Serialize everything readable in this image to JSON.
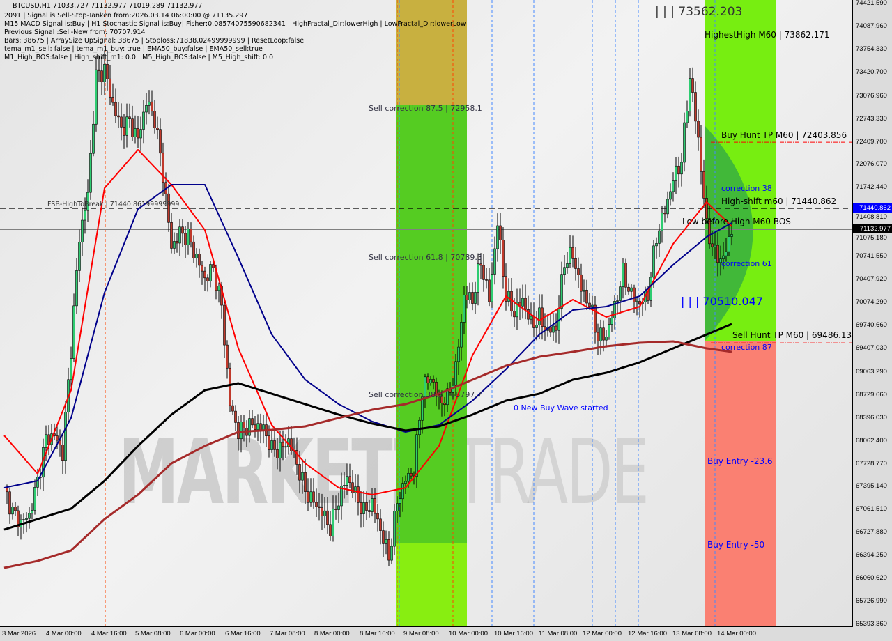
{
  "header": {
    "title_line": "BTCUSD,H1  71033.727 71132.977 71019.289 71132.977",
    "lines": [
      "2091 | Signal is Sell-Stop-Tanken from:2026.03.14 06:00:00 @ 71135.297",
      "M15 MACD Signal is:Buy | H1 Stochastic Signal is:Buy| Fisher:0.08574075590682341 | HighFractal_Dir:lowerHigh | LowFractal_Dir:lowerLow",
      "Previous Signal :Sell-New from: 70707.914",
      "Bars: 38675 | ArraySize UpSignal: 38675 | Stoploss:71838.02499999999 | ResetLoop:false",
      "tema_m1_sell: false | tema_m1_buy: true | EMA50_buy:false | EMA50_sell:true",
      "M1_High_BOS:false | High_shift_m1: 0.0 | M5_High_BOS:false | M5_High_shift: 0.0"
    ]
  },
  "watermark": {
    "left": "MARKETZI",
    "right": "TRADE"
  },
  "annotations": {
    "top_price": "| | | 73562.203",
    "highest_high": "HighestHigh   M60 | 73862.171",
    "buy_hunt": "Buy Hunt TP M60 | 72403.856",
    "correction_38": "correction 38",
    "high_shift": "High-shift m60 | 71440.862",
    "low_before_high": "Low before High   M60-BOS",
    "correction_61": "correction 61",
    "mid_price": "| | | 70510.047",
    "sell_hunt": "Sell Hunt TP M60 | 69486.131",
    "correction_87": "correction 87",
    "buy_entry_23": "Buy Entry -23.6",
    "buy_entry_50": "Buy Entry -50",
    "sell_corr_875": "Sell correction 87.5 | 72958.1",
    "sell_corr_618": "Sell correction 61.8 | 70789.3",
    "sell_corr_382": "Sell correction 38.2 | 68797.7",
    "new_buy_wave": "0 New Buy Wave started",
    "fsb": "FSB-HighToBreak | 71440.86199999999"
  },
  "colors": {
    "bull": "#2ecc71",
    "bear": "#c0392b",
    "fast_ma": "#ff0000",
    "mid_ma": "#00008b",
    "slow_ma": "#000000",
    "long_ma": "#a52a2a",
    "zone_green": "#66dd22",
    "zone_red": "#fa8072",
    "accent_blue": "#0000ff"
  },
  "price_tags": {
    "high_shift": "71440.862",
    "current": "71132.977"
  },
  "chart_data": {
    "type": "candlestick",
    "symbol": "BTCUSD,H1",
    "ylim": [
      65393.36,
      74421.59
    ],
    "y_ticks": [
      "74421.590",
      "74087.960",
      "73754.330",
      "73420.700",
      "73076.960",
      "72743.330",
      "72409.700",
      "72076.070",
      "71742.440",
      "71408.810",
      "71075.180",
      "70741.550",
      "70407.920",
      "70074.290",
      "69740.660",
      "69407.030",
      "69063.290",
      "68729.660",
      "68396.030",
      "68062.400",
      "67728.770",
      "67395.140",
      "67061.510",
      "66727.880",
      "66394.250",
      "66060.620",
      "65726.990",
      "65393.360"
    ],
    "x_ticks": [
      "3 Mar 2026",
      "4 Mar 00:00",
      "4 Mar 16:00",
      "5 Mar 08:00",
      "6 Mar 00:00",
      "6 Mar 16:00",
      "7 Mar 08:00",
      "8 Mar 00:00",
      "8 Mar 16:00",
      "9 Mar 08:00",
      "10 Mar 00:00",
      "10 Mar 16:00",
      "11 Mar 08:00",
      "12 Mar 00:00",
      "12 Mar 16:00",
      "13 Mar 08:00",
      "14 Mar 00:00"
    ],
    "close_start": "3 Mar 2026 03:00",
    "close_step_hours": 3,
    "closes": [
      67380,
      67025,
      66870,
      66975,
      67480,
      68090,
      68140,
      67885,
      69405,
      71030,
      71640,
      73360,
      73460,
      72950,
      72600,
      72700,
      72445,
      73000,
      72750,
      71940,
      70875,
      71080,
      71030,
      70720,
      70420,
      70570,
      70015,
      68595,
      68190,
      68270,
      68290,
      68240,
      67935,
      67935,
      68065,
      67735,
      67330,
      67175,
      67025,
      66790,
      67215,
      67540,
      67280,
      67025,
      67155,
      66770,
      66365,
      67175,
      67500,
      67620,
      68800,
      69000,
      68645,
      68675,
      69100,
      70165,
      70115,
      70670,
      70115,
      71230,
      70165,
      69930,
      70115,
      69750,
      69850,
      69650,
      69710,
      70670,
      70770,
      70265,
      70055,
      69570,
      69590,
      70015,
      70500,
      70175,
      70055,
      70195,
      71030,
      71410,
      71860,
      72140,
      73360,
      72445,
      71180,
      70770,
      70700,
      71130
    ],
    "ma_step_hours": 12,
    "ma_series": [
      {
        "color": "#ff0000",
        "values": [
          68139,
          67582,
          68798,
          71736,
          72294,
          71787,
          71128,
          69406,
          68291,
          67734,
          67379,
          67278,
          67379,
          67987,
          69304,
          70166,
          69811,
          70115,
          69862,
          70014,
          70926,
          71534,
          71180
        ]
      },
      {
        "color": "#00008b",
        "values": [
          67379,
          67480,
          68393,
          70216,
          71432,
          71787,
          71787,
          70723,
          69608,
          68950,
          68595,
          68342,
          68190,
          68291,
          68646,
          69102,
          69608,
          69963,
          70014,
          70166,
          70622,
          71027,
          71230
        ]
      },
      {
        "color": "#000000",
        "values": [
          66771,
          66923,
          67075,
          67480,
          67987,
          68443,
          68798,
          68899,
          68747,
          68595,
          68443,
          68312,
          68210,
          68271,
          68443,
          68646,
          68747,
          68950,
          69051,
          69203,
          69406,
          69608,
          69760
        ]
      },
      {
        "color": "#a52a2a",
        "values": [
          66214,
          66315,
          66467,
          66923,
          67278,
          67734,
          67987,
          68190,
          68220,
          68271,
          68393,
          68514,
          68595,
          68747,
          68950,
          69153,
          69284,
          69355,
          69436,
          69487,
          69507,
          69406,
          69355
        ]
      }
    ],
    "levels": [
      {
        "price": 71440.862,
        "style": "dashed",
        "color": "#000000"
      },
      {
        "price": 71132.977,
        "style": "solid",
        "color": "#808080"
      },
      {
        "price": 72403.856,
        "style": "dashdot",
        "color": "#ff0000"
      },
      {
        "price": 69486.131,
        "style": "dashdot",
        "color": "#ff0000"
      }
    ]
  }
}
